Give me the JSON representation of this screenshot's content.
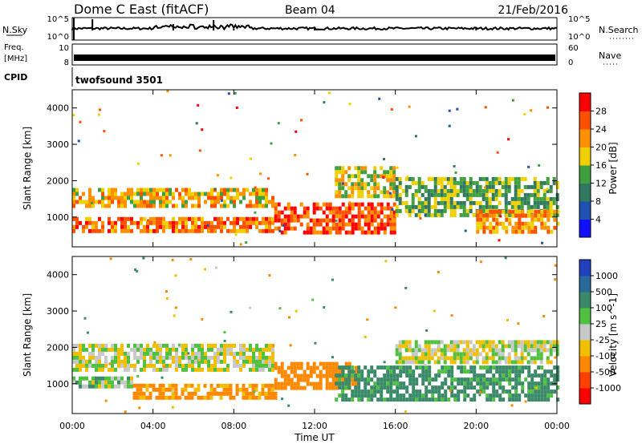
{
  "header": {
    "station": "Dome C East (fitACF)",
    "beam": "Beam 04",
    "date": "21/Feb/2016"
  },
  "top_panels": {
    "nsky_label": "N.Sky",
    "nsearch_label": "N.Search",
    "freq_label_1": "Freq.",
    "freq_label_2": "[MHz]",
    "nave_label": "Nave",
    "cpid_label": "CPID",
    "cpid_value": "twofsound 3501",
    "noise_ticks": [
      "10^5",
      "10^0"
    ],
    "freq_ticks": [
      "10",
      "8"
    ],
    "nave_ticks": [
      "60",
      "0"
    ]
  },
  "axes": {
    "ylabel": "Slant Range [km]",
    "xlabel": "Time UT",
    "xticks": [
      "00:00",
      "04:00",
      "08:00",
      "12:00",
      "16:00",
      "20:00",
      "00:00"
    ],
    "yticks": [
      "1000",
      "2000",
      "3000",
      "4000"
    ]
  },
  "colorbars": {
    "power": {
      "label": "Power [dB]",
      "ticks": [
        "4",
        "8",
        "12",
        "16",
        "20",
        "24",
        "28"
      ],
      "colors": [
        "#1010ff",
        "#2050b0",
        "#307860",
        "#40a040",
        "#f0d000",
        "#ff9000",
        "#ff5000",
        "#ff0000"
      ]
    },
    "velocity": {
      "label": "Velocity [m s^-1]",
      "ticks": [
        "1000",
        "500",
        "100",
        "25",
        "-25",
        "-100",
        "-500",
        "-1000"
      ],
      "colors": [
        "#2040c0",
        "#2a6a9a",
        "#3a8a6a",
        "#50c040",
        "#c8c8c8",
        "#f0c000",
        "#ff8800",
        "#ff4000",
        "#ff0000"
      ]
    }
  },
  "chart_data": [
    {
      "type": "heatmap",
      "title": "Power",
      "x_range_hours": [
        0,
        24
      ],
      "y_range_km": [
        180,
        4500
      ],
      "colorbar_label": "Power [dB]",
      "regions": [
        {
          "x": [
            0,
            10
          ],
          "y": [
            1300,
            1800
          ],
          "value_db": 20
        },
        {
          "x": [
            0,
            10
          ],
          "y": [
            600,
            1000
          ],
          "value_db": 24
        },
        {
          "x": [
            10,
            16
          ],
          "y": [
            600,
            1400
          ],
          "value_db": 26
        },
        {
          "x": [
            13,
            16
          ],
          "y": [
            1600,
            2400
          ],
          "value_db": 18
        },
        {
          "x": [
            16,
            24
          ],
          "y": [
            1000,
            2100
          ],
          "value_db": 14
        },
        {
          "x": [
            20,
            24
          ],
          "y": [
            600,
            1200
          ],
          "value_db": 22
        }
      ]
    },
    {
      "type": "heatmap",
      "title": "Velocity",
      "x_range_hours": [
        0,
        24
      ],
      "y_range_km": [
        180,
        4500
      ],
      "colorbar_label": "Velocity [m s^-1]",
      "regions": [
        {
          "x": [
            0,
            10
          ],
          "y": [
            1400,
            2100
          ],
          "value_ms": 0
        },
        {
          "x": [
            0,
            3
          ],
          "y": [
            900,
            1200
          ],
          "value_ms": 50
        },
        {
          "x": [
            3,
            10
          ],
          "y": [
            600,
            1000
          ],
          "value_ms": -150
        },
        {
          "x": [
            10,
            14
          ],
          "y": [
            900,
            1600
          ],
          "value_ms": -200
        },
        {
          "x": [
            13,
            24
          ],
          "y": [
            600,
            1500
          ],
          "value_ms": 150
        },
        {
          "x": [
            16,
            24
          ],
          "y": [
            1600,
            2200
          ],
          "value_ms": 0
        }
      ]
    }
  ]
}
